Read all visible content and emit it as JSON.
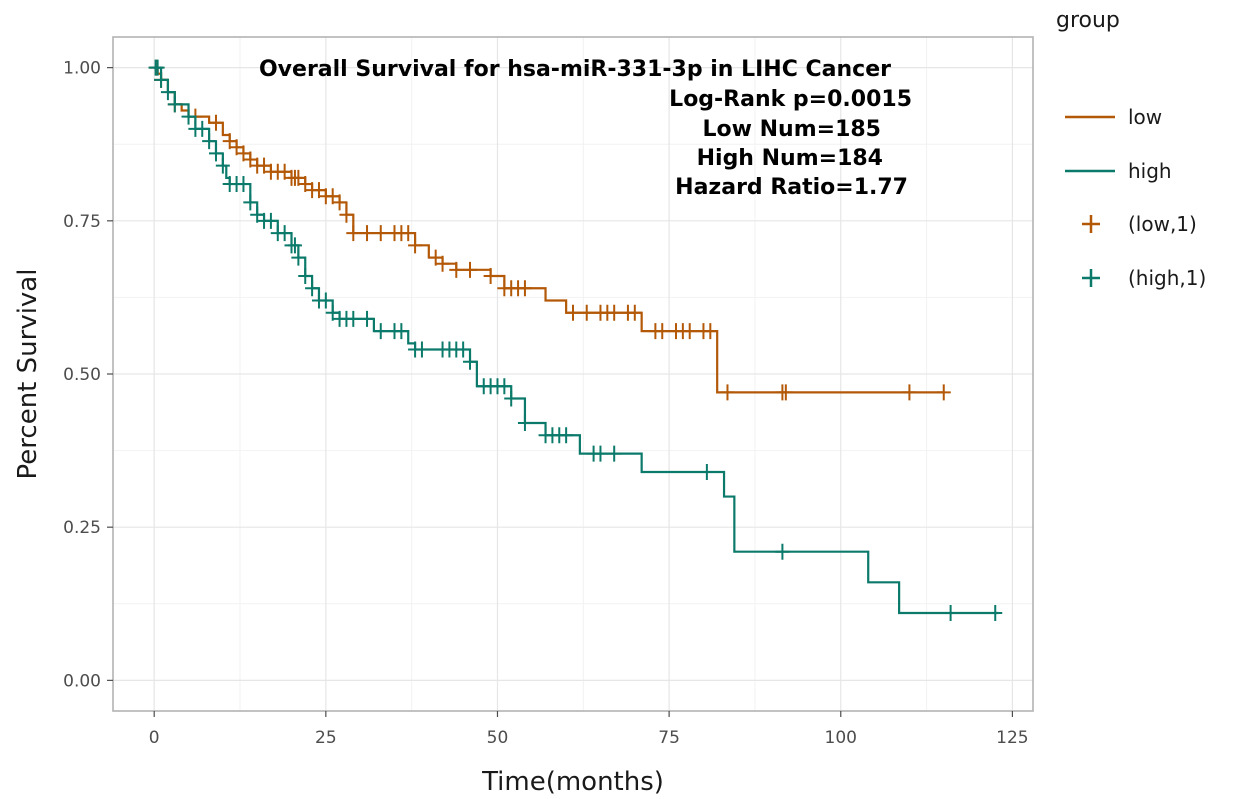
{
  "chart_data": {
    "type": "line",
    "xlabel": "Time(months)",
    "ylabel": "Percent Survival",
    "xlim": [
      -6,
      128
    ],
    "ylim": [
      -0.05,
      1.05
    ],
    "x_ticks": [
      0,
      25,
      50,
      75,
      100,
      125
    ],
    "y_ticks": [
      0.0,
      0.25,
      0.5,
      0.75,
      1.0
    ],
    "x_tick_labels": [
      "0",
      "25",
      "50",
      "75",
      "100",
      "125"
    ],
    "y_tick_labels": [
      "0.00",
      "0.25",
      "0.50",
      "0.75",
      "1.00"
    ],
    "grid": true,
    "annotations": [
      "Overall Survival for hsa-miR-331-3p in LIHC Cancer",
      "Log-Rank p=0.0015",
      "Low Num=185",
      "High Num=184",
      "Hazard Ratio=1.77"
    ],
    "legend": {
      "title": "group",
      "position": "right",
      "entries": [
        {
          "label": "low",
          "kind": "line",
          "color": "#b35806"
        },
        {
          "label": "high",
          "kind": "line",
          "color": "#0b7a6b"
        },
        {
          "label": "(low,1)",
          "kind": "cross",
          "color": "#b35806"
        },
        {
          "label": "(high,1)",
          "kind": "cross",
          "color": "#0b7a6b"
        }
      ]
    },
    "series": [
      {
        "name": "low",
        "color": "#b35806",
        "steps": [
          [
            0,
            1.0
          ],
          [
            0.5,
            0.99
          ],
          [
            1,
            0.98
          ],
          [
            2,
            0.96
          ],
          [
            3,
            0.94
          ],
          [
            4,
            0.93
          ],
          [
            5,
            0.92
          ],
          [
            8,
            0.91
          ],
          [
            10,
            0.89
          ],
          [
            11,
            0.88
          ],
          [
            12,
            0.87
          ],
          [
            13,
            0.86
          ],
          [
            14,
            0.85
          ],
          [
            15,
            0.84
          ],
          [
            17,
            0.83
          ],
          [
            20,
            0.82
          ],
          [
            22,
            0.81
          ],
          [
            23,
            0.8
          ],
          [
            25,
            0.79
          ],
          [
            27,
            0.78
          ],
          [
            28,
            0.76
          ],
          [
            29,
            0.73
          ],
          [
            38,
            0.71
          ],
          [
            40,
            0.69
          ],
          [
            42,
            0.68
          ],
          [
            44,
            0.67
          ],
          [
            49,
            0.66
          ],
          [
            51,
            0.64
          ],
          [
            57,
            0.62
          ],
          [
            60,
            0.6
          ],
          [
            71,
            0.57
          ],
          [
            82,
            0.47
          ],
          [
            115,
            0.47
          ]
        ],
        "censor_x": [
          0.3,
          1,
          3,
          6,
          9,
          11,
          12,
          13,
          14,
          15,
          16,
          17,
          18,
          19,
          20,
          20.5,
          21,
          22,
          23,
          24,
          25,
          26,
          27,
          28,
          29,
          31,
          33,
          35,
          36,
          37,
          38,
          41,
          42,
          44,
          46,
          49,
          51,
          52,
          53,
          54,
          61,
          63,
          65,
          66,
          67,
          69,
          70,
          73,
          74,
          76,
          77,
          78,
          80,
          81,
          83.5,
          91.5,
          92,
          110,
          115
        ]
      },
      {
        "name": "high",
        "color": "#0b7a6b",
        "steps": [
          [
            0,
            1.0
          ],
          [
            1,
            0.98
          ],
          [
            2,
            0.96
          ],
          [
            3,
            0.94
          ],
          [
            5,
            0.92
          ],
          [
            6,
            0.9
          ],
          [
            8,
            0.88
          ],
          [
            9,
            0.86
          ],
          [
            10,
            0.84
          ],
          [
            10.5,
            0.82
          ],
          [
            11,
            0.81
          ],
          [
            14,
            0.78
          ],
          [
            15,
            0.76
          ],
          [
            16,
            0.75
          ],
          [
            18,
            0.73
          ],
          [
            20,
            0.71
          ],
          [
            21,
            0.69
          ],
          [
            22,
            0.66
          ],
          [
            23,
            0.64
          ],
          [
            24,
            0.62
          ],
          [
            26,
            0.6
          ],
          [
            27,
            0.59
          ],
          [
            32,
            0.57
          ],
          [
            37,
            0.55
          ],
          [
            38,
            0.54
          ],
          [
            46,
            0.52
          ],
          [
            47,
            0.48
          ],
          [
            52,
            0.46
          ],
          [
            54,
            0.42
          ],
          [
            57,
            0.4
          ],
          [
            62,
            0.37
          ],
          [
            71,
            0.34
          ],
          [
            83,
            0.3
          ],
          [
            84.5,
            0.21
          ],
          [
            104,
            0.16
          ],
          [
            108.5,
            0.11
          ],
          [
            123,
            0.11
          ]
        ],
        "censor_x": [
          0.2,
          0.5,
          1,
          2,
          3,
          5,
          6,
          7,
          8,
          9,
          10,
          11,
          12,
          13,
          14,
          15,
          16,
          17,
          18,
          19,
          20,
          20.5,
          21,
          22,
          23,
          24,
          25,
          26,
          27,
          28,
          29,
          31,
          33,
          35,
          36,
          38,
          39,
          42,
          43,
          44,
          45,
          46,
          48,
          49,
          50,
          51,
          52,
          54,
          57,
          58,
          59,
          60,
          64,
          65,
          67,
          80.5,
          91.5,
          116,
          122.5
        ]
      }
    ]
  }
}
